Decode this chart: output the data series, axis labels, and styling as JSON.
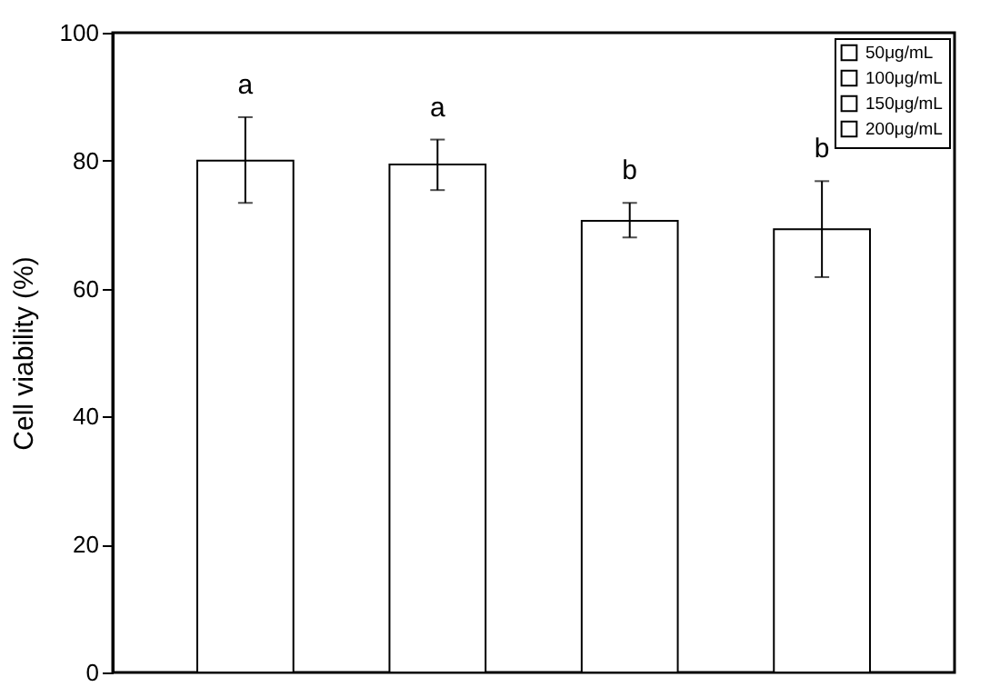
{
  "chart_data": {
    "type": "bar",
    "categories": [
      null,
      null,
      null,
      null
    ],
    "stacked": true,
    "series": [
      {
        "name": "50μg/mL",
        "color": "#ffffff",
        "values": [
          80.0,
          null,
          null,
          null
        ],
        "errors": [
          [
            73.4,
            86.8
          ],
          null,
          null,
          null
        ]
      },
      {
        "name": "100μg/mL",
        "color": "#ffffff",
        "values": [
          null,
          79.4,
          null,
          null
        ],
        "errors": [
          null,
          [
            75.4,
            83.3
          ],
          null,
          null
        ]
      },
      {
        "name": "150μg/mL",
        "color": "#ffffff",
        "values": [
          null,
          null,
          70.6,
          null
        ],
        "errors": [
          null,
          null,
          [
            68.0,
            73.4
          ],
          null
        ]
      },
      {
        "name": "200μg/mL",
        "color": "#ffffff",
        "values": [
          null,
          null,
          null,
          69.3
        ],
        "errors": [
          null,
          null,
          null,
          [
            61.8,
            76.8
          ]
        ]
      }
    ],
    "annotations": [
      "a",
      "a",
      "b",
      "b"
    ],
    "ylabel": "Cell viability (%)",
    "ylim": [
      0,
      100
    ],
    "yticks": [
      0,
      20,
      40,
      60,
      80,
      100
    ],
    "grid": false,
    "legend": "top right",
    "tick_labels": "y"
  }
}
